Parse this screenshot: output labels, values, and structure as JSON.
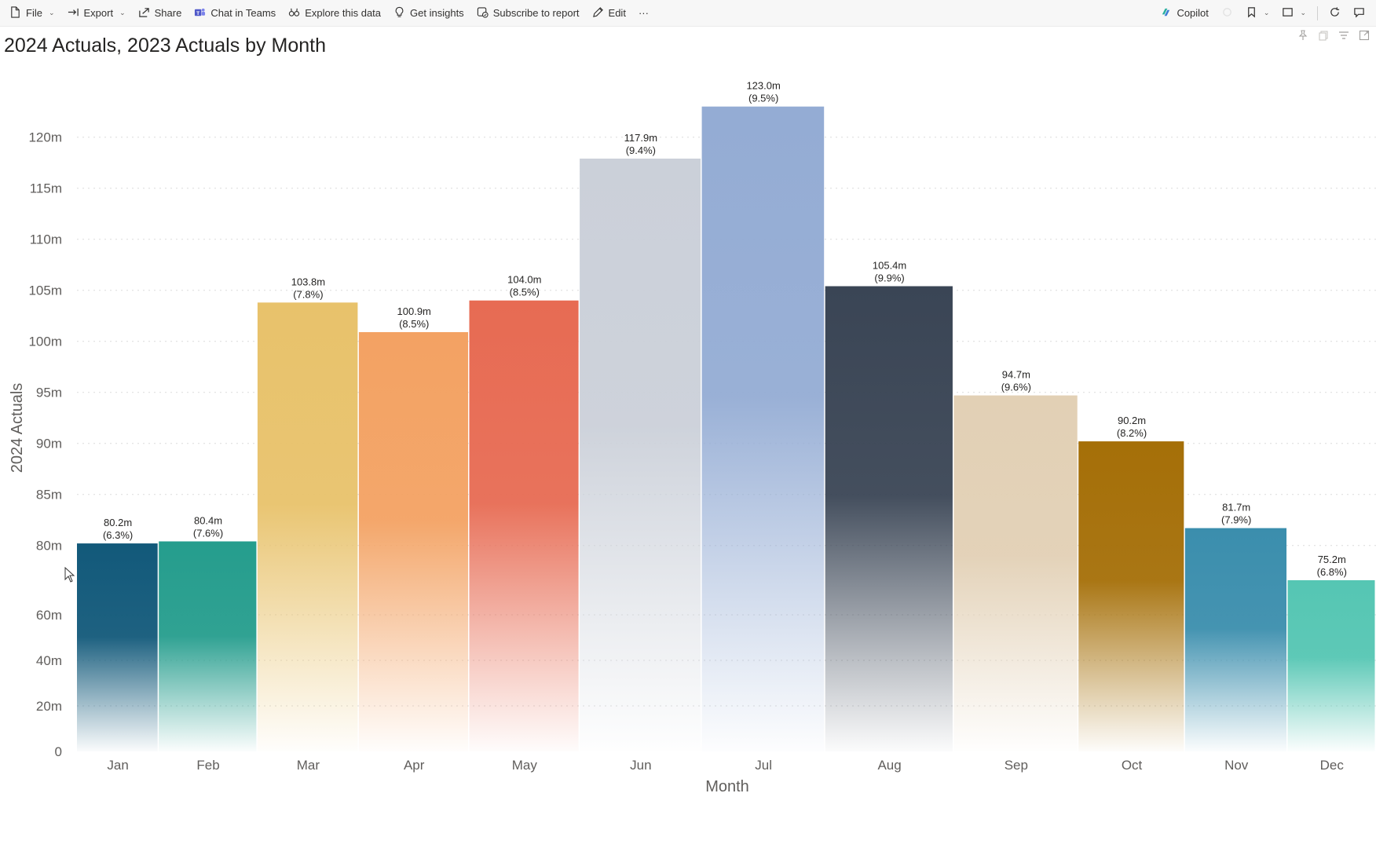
{
  "toolbar": {
    "left": [
      {
        "label": "File",
        "icon": "file-icon",
        "dropdown": true
      },
      {
        "label": "Export",
        "icon": "export-icon",
        "dropdown": true
      },
      {
        "label": "Share",
        "icon": "share-icon",
        "dropdown": false
      },
      {
        "label": "Chat in Teams",
        "icon": "teams-icon",
        "dropdown": false
      },
      {
        "label": "Explore this data",
        "icon": "explore-icon",
        "dropdown": false
      },
      {
        "label": "Get insights",
        "icon": "lightbulb-icon",
        "dropdown": false
      },
      {
        "label": "Subscribe to report",
        "icon": "subscribe-icon",
        "dropdown": false
      },
      {
        "label": "Edit",
        "icon": "pencil-icon",
        "dropdown": false
      }
    ],
    "more_label": "···",
    "copilot_label": "Copilot"
  },
  "chart_data": {
    "type": "bar",
    "title": "2024 Actuals, 2023 Actuals by Month",
    "xlabel": "Month",
    "ylabel": "2024 Actuals",
    "categories": [
      "Jan",
      "Feb",
      "Mar",
      "Apr",
      "May",
      "Jun",
      "Jul",
      "Aug",
      "Sep",
      "Oct",
      "Nov",
      "Dec"
    ],
    "values": [
      80.2,
      80.4,
      103.8,
      100.9,
      104.0,
      117.9,
      123.0,
      105.4,
      94.7,
      90.2,
      81.7,
      75.2
    ],
    "value_labels": [
      "80.2m",
      "80.4m",
      "103.8m",
      "100.9m",
      "104.0m",
      "117.9m",
      "123.0m",
      "105.4m",
      "94.7m",
      "90.2m",
      "81.7m",
      "75.2m"
    ],
    "percent_labels": [
      "(6.3%)",
      "(7.6%)",
      "(7.8%)",
      "(8.5%)",
      "(8.5%)",
      "(9.4%)",
      "(9.5%)",
      "(9.9%)",
      "(9.6%)",
      "(8.2%)",
      "(7.9%)",
      "(6.8%)"
    ],
    "width_values_2023": [
      6.3,
      7.6,
      7.8,
      8.5,
      8.5,
      9.4,
      9.5,
      9.9,
      9.6,
      8.2,
      7.9,
      6.8
    ],
    "colors": [
      "#12597a",
      "#259d8d",
      "#e8c26b",
      "#f3a263",
      "#e76b53",
      "#cbd0d9",
      "#94acd4",
      "#3a4555",
      "#e2d0b5",
      "#a56f08",
      "#3b8ead",
      "#55c6b3"
    ],
    "y_ticks_upper": [
      80,
      85,
      90,
      95,
      100,
      105,
      110,
      115,
      120
    ],
    "y_ticks_lower": [
      0,
      20,
      40,
      60
    ],
    "y_tick_labels_upper": [
      "80m",
      "85m",
      "90m",
      "95m",
      "100m",
      "105m",
      "110m",
      "115m",
      "120m"
    ],
    "y_tick_labels_lower": [
      "0",
      "20m",
      "40m",
      "60m"
    ],
    "y_axis_break_at": 77,
    "ylim": [
      0,
      125
    ],
    "grid": true,
    "legend": "none"
  }
}
